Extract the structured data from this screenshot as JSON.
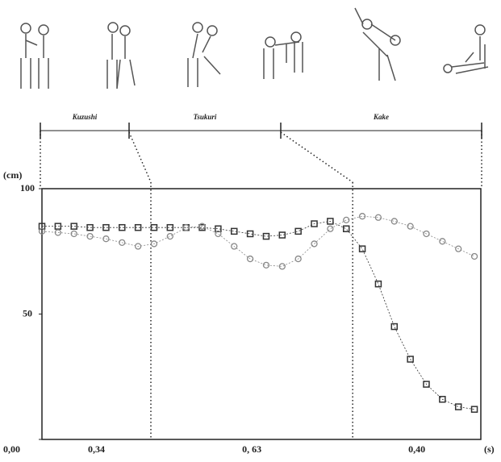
{
  "chart_data": {
    "type": "scatter",
    "ylabel": "(cm)",
    "xlabel": "(s)",
    "phases": [
      {
        "name": "Kuzushi",
        "duration": 0.34,
        "label": "0,34"
      },
      {
        "name": "Tsukuri",
        "duration": 0.63,
        "label": "0, 63"
      },
      {
        "name": "Kake",
        "duration": 0.4,
        "label": "0,40"
      }
    ],
    "xlim": [
      0,
      1.37
    ],
    "ylim": [
      0,
      100
    ],
    "yticks": [
      {
        "value": 0,
        "label": "0,00"
      },
      50,
      100
    ],
    "x": [
      0,
      0.05,
      0.1,
      0.15,
      0.2,
      0.25,
      0.3,
      0.35,
      0.4,
      0.45,
      0.5,
      0.55,
      0.6,
      0.65,
      0.7,
      0.75,
      0.8,
      0.85,
      0.9,
      0.95,
      1.0,
      1.05,
      1.1,
      1.15,
      1.2,
      1.25,
      1.3,
      1.35
    ],
    "series": [
      {
        "marker": "square",
        "color": "#333333",
        "values": [
          85,
          85,
          85,
          84.5,
          84.5,
          84.5,
          84.5,
          84.5,
          84.5,
          84.5,
          84.5,
          84,
          83,
          82,
          81,
          81.5,
          83,
          86,
          87,
          84,
          76,
          62,
          45,
          32,
          22,
          16,
          13,
          12
        ]
      },
      {
        "marker": "circle",
        "color": "#888888",
        "values": [
          83,
          82.5,
          82,
          81,
          80,
          78.5,
          77,
          78,
          81,
          84.5,
          85,
          82,
          77,
          72,
          69.5,
          69,
          72,
          78,
          84,
          87.5,
          89,
          88.5,
          87,
          85,
          82,
          79,
          76,
          73
        ]
      }
    ]
  }
}
